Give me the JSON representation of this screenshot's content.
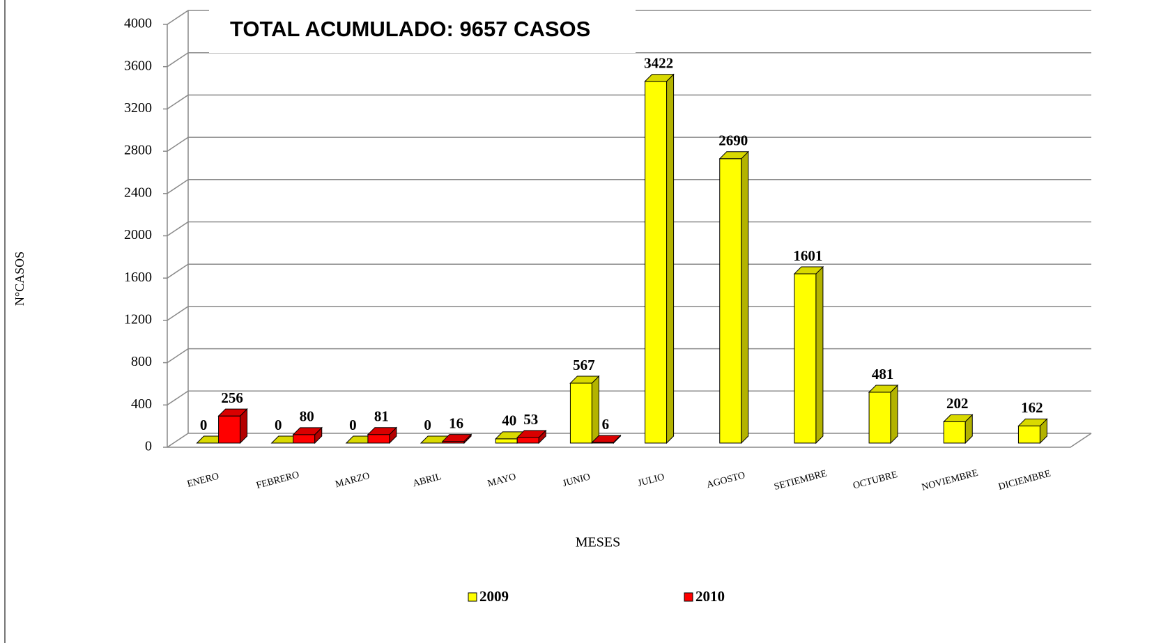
{
  "chart_data": {
    "type": "bar3d",
    "annotation": "TOTAL ACUMULADO: 9657 CASOS",
    "xlabel": "MESES",
    "ylabel": "N°CASOS",
    "categories": [
      "ENERO",
      "FEBRERO",
      "MARZO",
      "ABRIL",
      "MAYO",
      "JUNIO",
      "JULIO",
      "AGOSTO",
      "SETIEMBRE",
      "OCTUBRE",
      "NOVIEMBRE",
      "DICIEMBRE"
    ],
    "series": [
      {
        "name": "2009",
        "color": "#ffff00",
        "values": [
          0,
          0,
          0,
          0,
          40,
          567,
          3422,
          2690,
          1601,
          481,
          202,
          162
        ]
      },
      {
        "name": "2010",
        "color": "#ff0000",
        "values": [
          256,
          80,
          81,
          16,
          53,
          6,
          null,
          null,
          null,
          null,
          null,
          null
        ]
      }
    ],
    "ylim": [
      0,
      4000
    ],
    "yticks": [
      0,
      400,
      800,
      1200,
      1600,
      2000,
      2400,
      2800,
      3200,
      3600,
      4000
    ],
    "grid": true
  }
}
